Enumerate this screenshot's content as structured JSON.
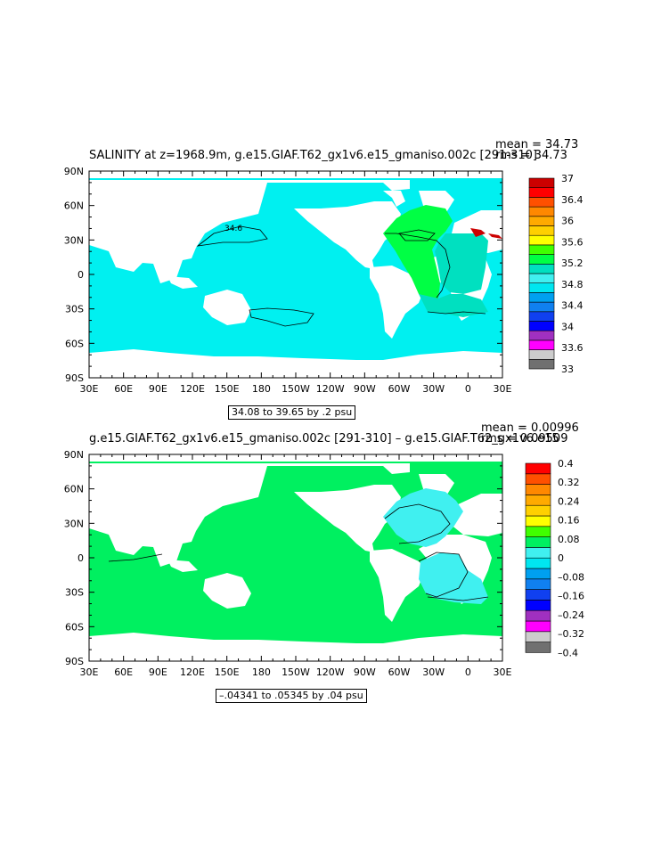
{
  "panels": [
    {
      "title": "SALINITY at z=1968.9m, g.e15.GIAF.T62_gx1v6.e15_gmaniso.002c [291-310]",
      "stat_mean": "mean = 34.73",
      "stat_rms": "rms = 34.73",
      "caption": "34.08 to 39.65 by .2 psu",
      "contour_label": "34.6",
      "ocean_color": "#00f0f0",
      "colorbar": {
        "colors": [
          "#707070",
          "#cccccc",
          "#ff00ff",
          "#a030c0",
          "#0000ff",
          "#1040f0",
          "#1080f0",
          "#00a0f0",
          "#00e6f0",
          "#40f0f0",
          "#00e0c0",
          "#00ff44",
          "#40ff00",
          "#ffff00",
          "#ffd000",
          "#ffaa00",
          "#ff8800",
          "#ff5000",
          "#ff0000",
          "#cc0000"
        ],
        "labels": [
          "33",
          "33.6",
          "34",
          "34.4",
          "34.8",
          "35.2",
          "35.6",
          "36",
          "36.4",
          "37"
        ]
      }
    },
    {
      "title": "g.e15.GIAF.T62_gx1v6.e15_gmaniso.002c [291-310] – g.e15.GIAF.T62_gx1v6.e15",
      "stat_mean": "mean = 0.00996",
      "stat_rms": "rms = 0.09509",
      "caption": "–.04341 to .05345 by .04 psu",
      "ocean_color": "#00f060",
      "colorbar": {
        "colors": [
          "#707070",
          "#cccccc",
          "#ff00ff",
          "#a030c0",
          "#0000ff",
          "#1040f0",
          "#1080f0",
          "#00a0f0",
          "#00e6f0",
          "#40f0f0",
          "#00f060",
          "#40ff00",
          "#ffff00",
          "#ffd000",
          "#ffaa00",
          "#ff8800",
          "#ff5000",
          "#ff0000"
        ],
        "labels": [
          "–0.4",
          "–0.32",
          "–0.24",
          "–0.16",
          "–0.08",
          "0",
          "0.08",
          "0.16",
          "0.24",
          "0.32",
          "0.4"
        ]
      }
    }
  ],
  "map_axes": {
    "lon_labels": [
      "30E",
      "60E",
      "90E",
      "120E",
      "150E",
      "180",
      "150W",
      "120W",
      "90W",
      "60W",
      "30W",
      "0",
      "30E"
    ],
    "lat_labels": [
      "90N",
      "60N",
      "30N",
      "0",
      "30S",
      "60S",
      "90S"
    ]
  }
}
